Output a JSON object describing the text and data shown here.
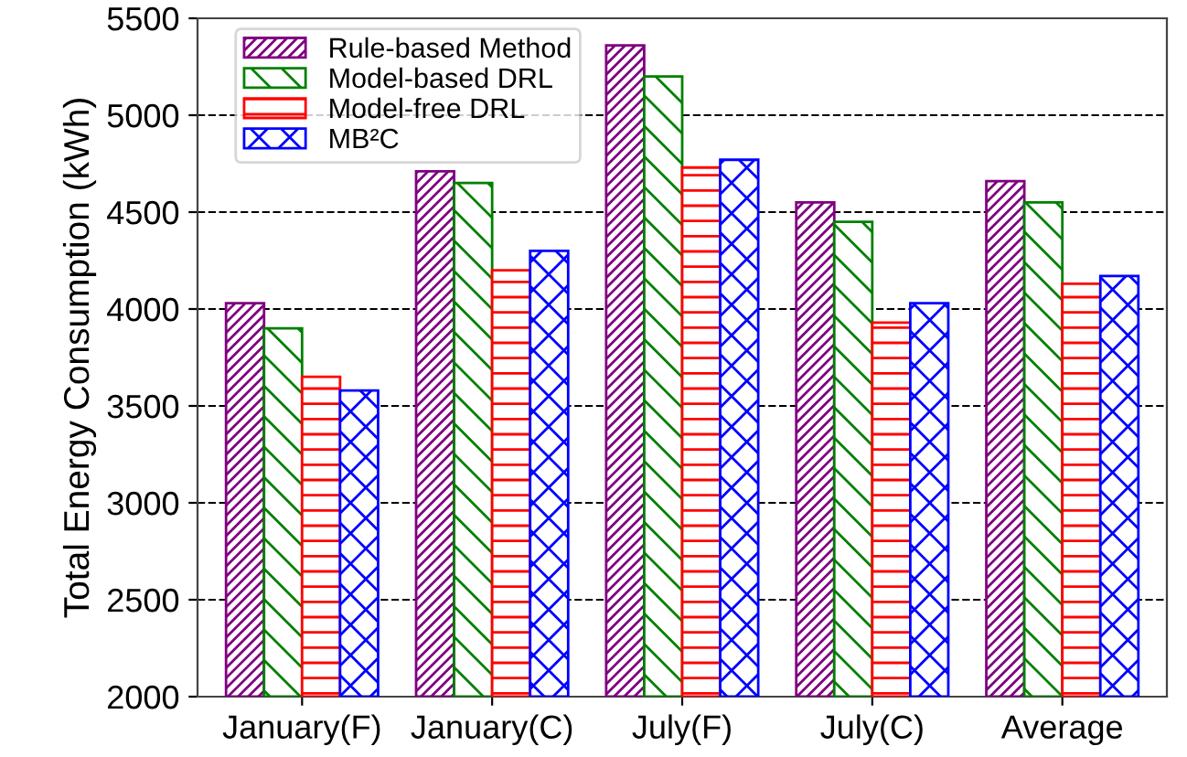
{
  "chart_data": {
    "type": "bar",
    "ylabel": "Total Energy Consumption (kWh)",
    "categories": [
      "January(F)",
      "January(C)",
      "July(F)",
      "July(C)",
      "Average"
    ],
    "series": [
      {
        "name": "Rule-based Method",
        "color": "#800080",
        "values": [
          4030,
          4710,
          5360,
          4550,
          4660
        ]
      },
      {
        "name": "Model-based DRL",
        "color": "#008000",
        "values": [
          3900,
          4650,
          5200,
          4450,
          4550
        ]
      },
      {
        "name": "Model-free DRL",
        "color": "#ff0000",
        "values": [
          3650,
          4200,
          4730,
          3930,
          4130
        ]
      },
      {
        "name": "MB²C",
        "color": "#0000ff",
        "values": [
          3580,
          4300,
          4770,
          4030,
          4170
        ]
      }
    ],
    "ylim": [
      2000,
      5500
    ],
    "yticks": [
      2000,
      2500,
      3000,
      3500,
      4000,
      4500,
      5000,
      5500
    ],
    "grid": "y",
    "legend": "top left"
  }
}
